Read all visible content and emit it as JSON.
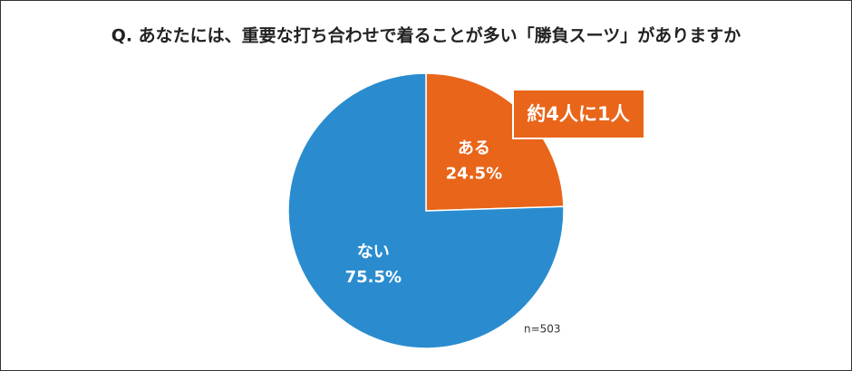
{
  "chart_data": {
    "type": "pie",
    "title": "Q. あなたには、重要な打ち合わせで着ることが多い「勝負スーツ」がありますか",
    "categories": [
      "ある",
      "ない"
    ],
    "values": [
      24.5,
      75.5
    ],
    "value_labels": [
      "24.5%",
      "75.5%"
    ],
    "colors": [
      "#e8651a",
      "#2a8ccf"
    ],
    "annotation": "約4人に1人",
    "note": "n=503"
  }
}
